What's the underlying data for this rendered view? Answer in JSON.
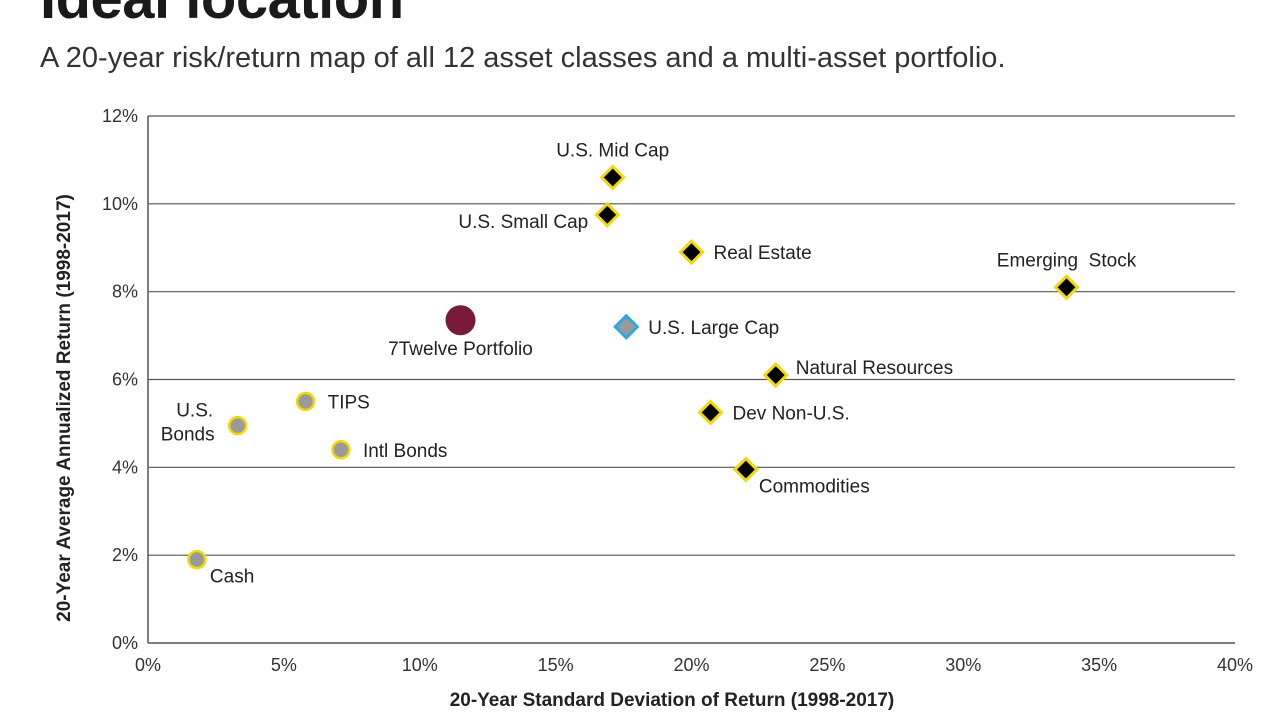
{
  "title": "Ideal location",
  "subtitle": "A 20-year risk/return map of all 12 asset classes and a multi-asset portfolio.",
  "chart_data": {
    "type": "scatter",
    "xlabel": "20-Year Standard Deviation of Return (1998-2017)",
    "ylabel": "20-Year Average Annualized Return (1998-2017)",
    "xlim": [
      0,
      40
    ],
    "ylim": [
      0,
      12
    ],
    "xticks": [
      0,
      5,
      10,
      15,
      20,
      25,
      30,
      35,
      40
    ],
    "yticks": [
      0,
      2,
      4,
      6,
      8,
      10,
      12
    ],
    "xtick_labels": [
      "0%",
      "5%",
      "10%",
      "15%",
      "20%",
      "25%",
      "30%",
      "35%",
      "40%"
    ],
    "ytick_labels": [
      "0%",
      "2%",
      "4%",
      "6%",
      "8%",
      "10%",
      "12%"
    ],
    "grid": "horizontal",
    "colors": {
      "diamond_fill": "#000000",
      "diamond_outline": "#f2d90a",
      "circle_fill": "#9a9a9a",
      "circle_outline": "#f2d90a",
      "large_cap_fill": "#9a9a9a",
      "large_cap_outline": "#2fa7e0",
      "portfolio_fill": "#7a1a3a",
      "grid": "#555555"
    },
    "points": [
      {
        "label": "U.S. Mid Cap",
        "x": 17.1,
        "y": 10.6,
        "marker": "diamond",
        "label_pos": "above"
      },
      {
        "label": "U.S. Small Cap",
        "x": 16.9,
        "y": 9.75,
        "marker": "diamond",
        "label_pos": "left"
      },
      {
        "label": "Real Estate",
        "x": 20.0,
        "y": 8.9,
        "marker": "diamond",
        "label_pos": "right"
      },
      {
        "label": "Emerging  Stock",
        "x": 33.8,
        "y": 8.1,
        "marker": "diamond",
        "label_pos": "above"
      },
      {
        "label": "U.S. Large Cap",
        "x": 17.6,
        "y": 7.2,
        "marker": "diamond-blue",
        "label_pos": "right"
      },
      {
        "label": "7Twelve Portfolio",
        "x": 11.5,
        "y": 7.35,
        "marker": "portfolio",
        "label_pos": "below"
      },
      {
        "label": "Natural Resources",
        "x": 23.1,
        "y": 6.1,
        "marker": "diamond",
        "label_pos": "above-right"
      },
      {
        "label": "Dev Non-U.S.",
        "x": 20.7,
        "y": 5.25,
        "marker": "diamond",
        "label_pos": "right"
      },
      {
        "label": "Commodities",
        "x": 22.0,
        "y": 3.95,
        "marker": "diamond",
        "label_pos": "below-right"
      },
      {
        "label": "TIPS",
        "x": 5.8,
        "y": 5.5,
        "marker": "circle",
        "label_pos": "right"
      },
      {
        "label": "U.S.",
        "label2": "Bonds",
        "x": 3.3,
        "y": 4.95,
        "marker": "circle",
        "label_pos": "left-two-line"
      },
      {
        "label": "Intl Bonds",
        "x": 7.1,
        "y": 4.4,
        "marker": "circle",
        "label_pos": "right"
      },
      {
        "label": "Cash",
        "x": 1.8,
        "y": 1.9,
        "marker": "circle",
        "label_pos": "below-right"
      }
    ]
  }
}
